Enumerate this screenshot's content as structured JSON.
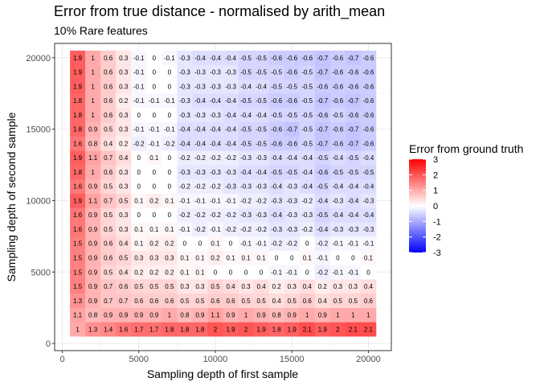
{
  "title": "Error from true distance - normalised by arith_mean",
  "subtitle": "10% Rare features",
  "chart_data": {
    "type": "heatmap",
    "title": "Error from true distance - normalised by arith_mean",
    "subtitle": "10% Rare features",
    "xlabel": "Sampling depth of first sample",
    "ylabel": "Sampling depth of second sample",
    "x_ticks": [
      0,
      5000,
      10000,
      15000,
      20000
    ],
    "y_ticks": [
      0,
      5000,
      10000,
      15000,
      20000
    ],
    "xlim": [
      -500,
      21500
    ],
    "ylim": [
      -500,
      21000
    ],
    "x": [
      1000,
      2000,
      3000,
      4000,
      5000,
      6000,
      7000,
      8000,
      9000,
      10000,
      11000,
      12000,
      13000,
      14000,
      15000,
      16000,
      17000,
      18000,
      19000,
      20000
    ],
    "y": [
      1000,
      2000,
      3000,
      4000,
      5000,
      6000,
      7000,
      8000,
      9000,
      10000,
      11000,
      12000,
      13000,
      14000,
      15000,
      16000,
      17000,
      18000,
      19000,
      20000
    ],
    "values": [
      [
        1,
        1.3,
        1.4,
        1.6,
        1.7,
        1.7,
        1.8,
        1.8,
        1.8,
        2,
        1.9,
        2,
        1.9,
        1.8,
        1.9,
        2.1,
        1.9,
        2,
        2.1,
        2.1
      ],
      [
        1.1,
        0.8,
        0.9,
        0.9,
        0.9,
        0.9,
        1,
        0.8,
        0.9,
        1.1,
        0.9,
        1,
        0.9,
        0.8,
        0.9,
        1,
        0.9,
        1,
        1,
        1
      ],
      [
        1.3,
        0.9,
        0.7,
        0.7,
        0.6,
        0.6,
        0.6,
        0.5,
        0.5,
        0.6,
        0.6,
        0.5,
        0.5,
        0.4,
        0.5,
        0.6,
        0.4,
        0.5,
        0.5,
        0.6
      ],
      [
        1.5,
        0.9,
        0.7,
        0.6,
        0.5,
        0.5,
        0.5,
        0.3,
        0.3,
        0.5,
        0.4,
        0.3,
        0.4,
        0.2,
        0.3,
        0.4,
        0.2,
        0.3,
        0.3,
        0.4
      ],
      [
        1.5,
        0.9,
        0.5,
        0.4,
        0.2,
        0.2,
        0.2,
        0.1,
        0.1,
        0,
        0,
        0,
        0,
        -0.1,
        -0.1,
        0,
        -0.2,
        -0.1,
        -0.1,
        0
      ],
      [
        1.5,
        0.9,
        0.6,
        0.5,
        0.3,
        0.3,
        0.3,
        0.1,
        0.1,
        0.2,
        0.1,
        0.1,
        0.1,
        0,
        0,
        0.1,
        -0.1,
        0,
        0,
        0.1
      ],
      [
        1.5,
        0.9,
        0.6,
        0.4,
        0.1,
        0.2,
        0.2,
        0,
        0,
        0.1,
        0,
        -0.1,
        -0.1,
        -0.2,
        -0.2,
        0,
        -0.2,
        -0.1,
        -0.1,
        -0.1
      ],
      [
        1.6,
        0.9,
        0.5,
        0.3,
        0.1,
        0.1,
        0.1,
        -0.1,
        -0.2,
        -0.1,
        -0.2,
        -0.2,
        -0.2,
        -0.3,
        -0.3,
        -0.2,
        -0.4,
        -0.3,
        -0.3,
        -0.3
      ],
      [
        1.6,
        0.9,
        0.5,
        0.3,
        0,
        0,
        0,
        -0.2,
        -0.2,
        -0.2,
        -0.2,
        -0.3,
        -0.3,
        -0.4,
        -0.3,
        -0.3,
        -0.5,
        -0.4,
        -0.4,
        -0.4
      ],
      [
        1.9,
        1.1,
        0.7,
        0.5,
        0.1,
        0.2,
        0.1,
        -0.1,
        -0.1,
        -0.1,
        -0.1,
        -0.2,
        -0.2,
        -0.3,
        -0.3,
        -0.2,
        -0.4,
        -0.3,
        -0.4,
        -0.3
      ],
      [
        1.6,
        0.9,
        0.5,
        0.3,
        0,
        0,
        0,
        -0.2,
        -0.2,
        -0.2,
        -0.3,
        -0.3,
        -0.3,
        -0.4,
        -0.3,
        -0.4,
        -0.5,
        -0.4,
        -0.4,
        -0.4
      ],
      [
        1.8,
        1,
        0.6,
        0.3,
        0,
        0,
        0,
        -0.3,
        -0.3,
        -0.3,
        -0.3,
        -0.4,
        -0.4,
        -0.5,
        -0.5,
        -0.4,
        -0.6,
        -0.5,
        -0.5,
        -0.5
      ],
      [
        1.9,
        1.1,
        0.7,
        0.4,
        0,
        0.1,
        0,
        -0.2,
        -0.2,
        -0.2,
        -0.2,
        -0.3,
        -0.3,
        -0.4,
        -0.4,
        -0.4,
        -0.5,
        -0.4,
        -0.5,
        -0.4
      ],
      [
        1.6,
        0.8,
        0.4,
        0.2,
        -0.2,
        -0.1,
        -0.2,
        -0.4,
        -0.4,
        -0.4,
        -0.4,
        -0.5,
        -0.5,
        -0.6,
        -0.6,
        -0.5,
        -0.7,
        -0.6,
        -0.7,
        -0.6
      ],
      [
        1.8,
        0.9,
        0.5,
        0.3,
        -0.1,
        -0.1,
        -0.1,
        -0.4,
        -0.4,
        -0.4,
        -0.4,
        -0.5,
        -0.5,
        -0.6,
        -0.7,
        -0.5,
        -0.7,
        -0.6,
        -0.7,
        -0.6
      ],
      [
        1.8,
        1,
        0.6,
        0.3,
        0,
        0,
        0,
        -0.3,
        -0.3,
        -0.3,
        -0.4,
        -0.4,
        -0.4,
        -0.5,
        -0.5,
        -0.5,
        -0.6,
        -0.5,
        -0.6,
        -0.6
      ],
      [
        1.8,
        1,
        0.6,
        0.2,
        -0.1,
        -0.1,
        -0.1,
        -0.3,
        -0.4,
        -0.4,
        -0.4,
        -0.5,
        -0.5,
        -0.6,
        -0.6,
        -0.5,
        -0.7,
        -0.6,
        -0.7,
        -0.6
      ],
      [
        1.9,
        1,
        0.6,
        0.3,
        -0.1,
        0,
        0,
        -0.3,
        -0.3,
        -0.3,
        -0.3,
        -0.4,
        -0.4,
        -0.5,
        -0.5,
        -0.5,
        -0.6,
        -0.6,
        -0.6,
        -0.6
      ],
      [
        1.9,
        1,
        0.6,
        0.3,
        -0.1,
        0,
        0,
        -0.3,
        -0.3,
        -0.3,
        -0.3,
        -0.5,
        -0.5,
        -0.5,
        -0.6,
        -0.5,
        -0.7,
        -0.6,
        -0.6,
        -0.6
      ],
      [
        1.9,
        1,
        0.6,
        0.3,
        -0.1,
        0,
        -0.1,
        -0.3,
        -0.4,
        -0.4,
        -0.4,
        -0.5,
        -0.5,
        -0.6,
        -0.6,
        -0.6,
        -0.7,
        -0.6,
        -0.7,
        -0.6
      ]
    ],
    "legend": {
      "title": "Error from ground truth",
      "position": "right",
      "ticks": [
        3,
        2,
        1,
        0,
        -1,
        -2,
        -3
      ],
      "range": [
        -3,
        3
      ],
      "colors": {
        "low": "#0000ff",
        "mid": "#ffffff",
        "high": "#ff0000"
      }
    },
    "grid": true,
    "panel_border": true
  }
}
